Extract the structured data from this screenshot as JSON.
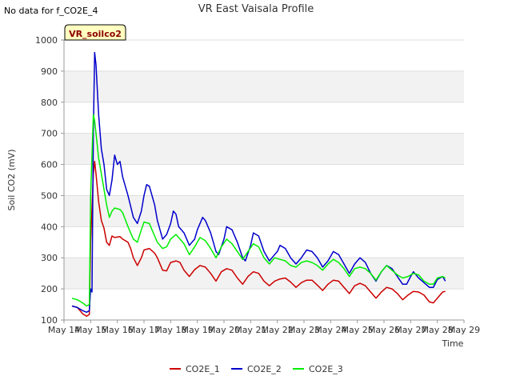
{
  "header": {
    "no_data_note": "No data for f_CO2E_4",
    "site_tag": "VR_soilco2"
  },
  "chart_data": {
    "type": "line",
    "title": "VR East Vaisala Profile",
    "xlabel": "Time",
    "ylabel": "Soil CO2 (mV)",
    "xlim": [
      14,
      29
    ],
    "ylim": [
      100,
      1000
    ],
    "x_tick_labels": [
      "May 14",
      "May 15",
      "May 16",
      "May 17",
      "May 18",
      "May 19",
      "May 20",
      "May 21",
      "May 22",
      "May 23",
      "May 24",
      "May 25",
      "May 26",
      "May 27",
      "May 28",
      "May 29"
    ],
    "y_ticks": [
      100,
      200,
      300,
      400,
      500,
      600,
      700,
      800,
      900,
      1000
    ],
    "grid": true,
    "legend_position": "bottom",
    "series": [
      {
        "name": "CO2E_1",
        "color": "#cc0000",
        "points": [
          [
            14.3,
            145
          ],
          [
            14.5,
            140
          ],
          [
            14.7,
            120
          ],
          [
            14.85,
            112
          ],
          [
            14.95,
            118
          ],
          [
            15.0,
            350
          ],
          [
            15.1,
            570
          ],
          [
            15.15,
            610
          ],
          [
            15.2,
            570
          ],
          [
            15.3,
            480
          ],
          [
            15.4,
            420
          ],
          [
            15.5,
            395
          ],
          [
            15.6,
            350
          ],
          [
            15.7,
            340
          ],
          [
            15.8,
            370
          ],
          [
            15.9,
            365
          ],
          [
            16.1,
            368
          ],
          [
            16.2,
            360
          ],
          [
            16.4,
            350
          ],
          [
            16.5,
            330
          ],
          [
            16.6,
            300
          ],
          [
            16.75,
            275
          ],
          [
            16.9,
            300
          ],
          [
            17.0,
            325
          ],
          [
            17.2,
            330
          ],
          [
            17.4,
            315
          ],
          [
            17.5,
            300
          ],
          [
            17.7,
            260
          ],
          [
            17.85,
            258
          ],
          [
            18.0,
            285
          ],
          [
            18.2,
            290
          ],
          [
            18.35,
            285
          ],
          [
            18.5,
            260
          ],
          [
            18.7,
            240
          ],
          [
            18.9,
            262
          ],
          [
            19.1,
            275
          ],
          [
            19.3,
            270
          ],
          [
            19.5,
            250
          ],
          [
            19.7,
            225
          ],
          [
            19.9,
            255
          ],
          [
            20.1,
            265
          ],
          [
            20.3,
            260
          ],
          [
            20.5,
            235
          ],
          [
            20.7,
            215
          ],
          [
            20.9,
            240
          ],
          [
            21.1,
            255
          ],
          [
            21.3,
            250
          ],
          [
            21.5,
            225
          ],
          [
            21.7,
            210
          ],
          [
            21.9,
            225
          ],
          [
            22.1,
            232
          ],
          [
            22.3,
            235
          ],
          [
            22.5,
            222
          ],
          [
            22.7,
            205
          ],
          [
            22.9,
            220
          ],
          [
            23.1,
            228
          ],
          [
            23.3,
            228
          ],
          [
            23.5,
            212
          ],
          [
            23.7,
            195
          ],
          [
            23.9,
            215
          ],
          [
            24.1,
            228
          ],
          [
            24.3,
            225
          ],
          [
            24.5,
            205
          ],
          [
            24.7,
            185
          ],
          [
            24.9,
            210
          ],
          [
            25.1,
            218
          ],
          [
            25.3,
            210
          ],
          [
            25.5,
            190
          ],
          [
            25.7,
            170
          ],
          [
            25.9,
            190
          ],
          [
            26.1,
            205
          ],
          [
            26.3,
            200
          ],
          [
            26.5,
            185
          ],
          [
            26.7,
            165
          ],
          [
            26.9,
            180
          ],
          [
            27.1,
            192
          ],
          [
            27.3,
            190
          ],
          [
            27.5,
            180
          ],
          [
            27.7,
            158
          ],
          [
            27.85,
            155
          ],
          [
            28.0,
            170
          ],
          [
            28.2,
            190
          ],
          [
            28.3,
            192
          ]
        ]
      },
      {
        "name": "CO2E_2",
        "color": "#0000cc",
        "points": [
          [
            14.3,
            145
          ],
          [
            14.5,
            140
          ],
          [
            14.7,
            130
          ],
          [
            14.85,
            125
          ],
          [
            14.95,
            130
          ],
          [
            15.0,
            200
          ],
          [
            15.05,
            190
          ],
          [
            15.1,
            700
          ],
          [
            15.15,
            960
          ],
          [
            15.2,
            920
          ],
          [
            15.3,
            760
          ],
          [
            15.4,
            650
          ],
          [
            15.5,
            600
          ],
          [
            15.6,
            520
          ],
          [
            15.7,
            500
          ],
          [
            15.8,
            550
          ],
          [
            15.9,
            630
          ],
          [
            16.0,
            600
          ],
          [
            16.1,
            610
          ],
          [
            16.2,
            560
          ],
          [
            16.4,
            500
          ],
          [
            16.6,
            430
          ],
          [
            16.75,
            410
          ],
          [
            16.9,
            450
          ],
          [
            17.0,
            500
          ],
          [
            17.1,
            535
          ],
          [
            17.2,
            530
          ],
          [
            17.4,
            470
          ],
          [
            17.5,
            420
          ],
          [
            17.7,
            360
          ],
          [
            17.85,
            375
          ],
          [
            18.0,
            410
          ],
          [
            18.1,
            450
          ],
          [
            18.2,
            440
          ],
          [
            18.3,
            400
          ],
          [
            18.5,
            380
          ],
          [
            18.7,
            340
          ],
          [
            18.9,
            360
          ],
          [
            19.0,
            390
          ],
          [
            19.2,
            430
          ],
          [
            19.3,
            420
          ],
          [
            19.5,
            380
          ],
          [
            19.7,
            320
          ],
          [
            19.8,
            310
          ],
          [
            20.0,
            360
          ],
          [
            20.1,
            400
          ],
          [
            20.3,
            390
          ],
          [
            20.5,
            350
          ],
          [
            20.7,
            300
          ],
          [
            20.8,
            290
          ],
          [
            21.0,
            340
          ],
          [
            21.1,
            380
          ],
          [
            21.3,
            370
          ],
          [
            21.5,
            320
          ],
          [
            21.7,
            290
          ],
          [
            21.9,
            310
          ],
          [
            22.0,
            320
          ],
          [
            22.1,
            340
          ],
          [
            22.3,
            330
          ],
          [
            22.5,
            300
          ],
          [
            22.7,
            280
          ],
          [
            22.9,
            300
          ],
          [
            23.1,
            325
          ],
          [
            23.3,
            320
          ],
          [
            23.5,
            300
          ],
          [
            23.7,
            270
          ],
          [
            23.9,
            290
          ],
          [
            24.1,
            320
          ],
          [
            24.3,
            310
          ],
          [
            24.5,
            280
          ],
          [
            24.7,
            250
          ],
          [
            24.9,
            280
          ],
          [
            25.1,
            300
          ],
          [
            25.3,
            285
          ],
          [
            25.5,
            250
          ],
          [
            25.7,
            225
          ],
          [
            25.9,
            255
          ],
          [
            26.1,
            275
          ],
          [
            26.3,
            265
          ],
          [
            26.5,
            240
          ],
          [
            26.7,
            215
          ],
          [
            26.85,
            215
          ],
          [
            27.0,
            240
          ],
          [
            27.1,
            255
          ],
          [
            27.3,
            235
          ],
          [
            27.5,
            220
          ],
          [
            27.7,
            205
          ],
          [
            27.85,
            205
          ],
          [
            28.0,
            230
          ],
          [
            28.2,
            240
          ],
          [
            28.3,
            225
          ]
        ]
      },
      {
        "name": "CO2E_3",
        "color": "#00ee00",
        "points": [
          [
            14.3,
            170
          ],
          [
            14.5,
            165
          ],
          [
            14.7,
            155
          ],
          [
            14.85,
            145
          ],
          [
            14.95,
            150
          ],
          [
            15.0,
            500
          ],
          [
            15.1,
            760
          ],
          [
            15.15,
            740
          ],
          [
            15.2,
            700
          ],
          [
            15.3,
            620
          ],
          [
            15.4,
            570
          ],
          [
            15.5,
            520
          ],
          [
            15.6,
            470
          ],
          [
            15.7,
            430
          ],
          [
            15.8,
            450
          ],
          [
            15.9,
            460
          ],
          [
            16.1,
            455
          ],
          [
            16.2,
            445
          ],
          [
            16.4,
            400
          ],
          [
            16.6,
            360
          ],
          [
            16.75,
            350
          ],
          [
            16.9,
            390
          ],
          [
            17.0,
            415
          ],
          [
            17.2,
            410
          ],
          [
            17.4,
            370
          ],
          [
            17.5,
            350
          ],
          [
            17.7,
            330
          ],
          [
            17.85,
            335
          ],
          [
            18.0,
            360
          ],
          [
            18.2,
            375
          ],
          [
            18.3,
            365
          ],
          [
            18.5,
            345
          ],
          [
            18.7,
            310
          ],
          [
            18.9,
            335
          ],
          [
            19.1,
            365
          ],
          [
            19.3,
            355
          ],
          [
            19.5,
            330
          ],
          [
            19.7,
            300
          ],
          [
            19.9,
            335
          ],
          [
            20.1,
            360
          ],
          [
            20.3,
            345
          ],
          [
            20.5,
            320
          ],
          [
            20.7,
            295
          ],
          [
            20.9,
            320
          ],
          [
            21.1,
            345
          ],
          [
            21.3,
            335
          ],
          [
            21.5,
            300
          ],
          [
            21.7,
            280
          ],
          [
            21.9,
            300
          ],
          [
            22.1,
            295
          ],
          [
            22.3,
            290
          ],
          [
            22.5,
            275
          ],
          [
            22.7,
            270
          ],
          [
            22.9,
            285
          ],
          [
            23.1,
            290
          ],
          [
            23.3,
            285
          ],
          [
            23.5,
            275
          ],
          [
            23.7,
            260
          ],
          [
            23.9,
            280
          ],
          [
            24.1,
            295
          ],
          [
            24.3,
            285
          ],
          [
            24.5,
            265
          ],
          [
            24.7,
            240
          ],
          [
            24.9,
            265
          ],
          [
            25.1,
            270
          ],
          [
            25.3,
            265
          ],
          [
            25.5,
            250
          ],
          [
            25.7,
            228
          ],
          [
            25.9,
            255
          ],
          [
            26.1,
            275
          ],
          [
            26.3,
            260
          ],
          [
            26.5,
            245
          ],
          [
            26.7,
            235
          ],
          [
            26.9,
            240
          ],
          [
            27.1,
            250
          ],
          [
            27.3,
            245
          ],
          [
            27.5,
            225
          ],
          [
            27.7,
            215
          ],
          [
            27.85,
            215
          ],
          [
            28.0,
            235
          ],
          [
            28.2,
            240
          ],
          [
            28.3,
            235
          ]
        ]
      }
    ]
  }
}
